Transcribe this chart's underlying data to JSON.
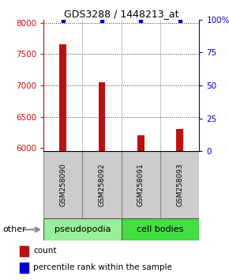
{
  "title": "GDS3288 / 1448213_at",
  "samples": [
    "GSM258090",
    "GSM258092",
    "GSM258091",
    "GSM258093"
  ],
  "counts": [
    7650,
    7050,
    6200,
    6300
  ],
  "percentiles": [
    99,
    99,
    99,
    99
  ],
  "ylim_left": [
    5950,
    8050
  ],
  "ylim_right": [
    0,
    100
  ],
  "yticks_left": [
    6000,
    6500,
    7000,
    7500,
    8000
  ],
  "yticks_right": [
    0,
    25,
    50,
    75,
    100
  ],
  "ytick_labels_right": [
    "0",
    "25",
    "50",
    "75",
    "100%"
  ],
  "bar_color": "#bb1111",
  "dot_color": "#0000cc",
  "groups": [
    {
      "label": "pseudopodia",
      "indices": [
        0,
        1
      ],
      "color": "#99ee99"
    },
    {
      "label": "cell bodies",
      "indices": [
        2,
        3
      ],
      "color": "#44dd44"
    }
  ],
  "other_label": "other",
  "bar_width": 0.18,
  "gridline_color": "#333333",
  "grid_yticks": [
    6500,
    7000,
    7500,
    8000
  ],
  "sample_box_color": "#cccccc",
  "sample_box_edge": "#888888"
}
